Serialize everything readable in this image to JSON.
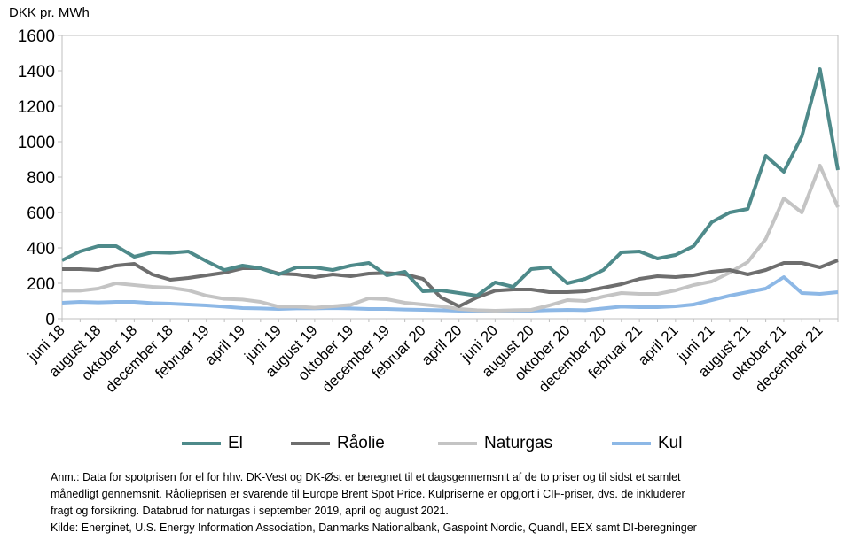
{
  "chart_data": {
    "type": "line",
    "ylabel": "DKK pr. MWh",
    "xlabel": "",
    "ylim": [
      0,
      1600
    ],
    "yticks": [
      "0",
      "200",
      "400",
      "600",
      "800",
      "1000",
      "1200",
      "1400",
      "1600"
    ],
    "grid": false,
    "legend": "bottom",
    "xticks": [
      "juni 18",
      "august 18",
      "oktober 18",
      "december 18",
      "februar 19",
      "april 19",
      "juni 19",
      "august 19",
      "oktober 19",
      "december 19",
      "februar 20",
      "april 20",
      "juni 20",
      "august 20",
      "oktober 20",
      "december 20",
      "februar 21",
      "april 21",
      "juni 21",
      "august 21",
      "oktober 21",
      "december 21"
    ],
    "x": [
      "jun 18",
      "jul 18",
      "aug 18",
      "sep 18",
      "okt 18",
      "nov 18",
      "dec 18",
      "jan 19",
      "feb 19",
      "mar 19",
      "apr 19",
      "maj 19",
      "jun 19",
      "jul 19",
      "aug 19",
      "sep 19",
      "okt 19",
      "nov 19",
      "dec 19",
      "jan 20",
      "feb 20",
      "mar 20",
      "apr 20",
      "maj 20",
      "jun 20",
      "jul 20",
      "aug 20",
      "sep 20",
      "okt 20",
      "nov 20",
      "dec 20",
      "jan 21",
      "feb 21",
      "mar 21",
      "apr 21",
      "maj 21",
      "jun 21",
      "jul 21",
      "aug 21",
      "sep 21",
      "okt 21",
      "nov 21",
      "dec 21",
      "jan 22"
    ],
    "series": [
      {
        "name": "El",
        "color": "#4e8a8a",
        "values": [
          330,
          380,
          410,
          410,
          350,
          375,
          372,
          380,
          325,
          275,
          300,
          285,
          250,
          290,
          290,
          275,
          300,
          315,
          245,
          265,
          155,
          160,
          145,
          130,
          205,
          180,
          280,
          290,
          200,
          225,
          275,
          375,
          380,
          340,
          360,
          410,
          545,
          600,
          620,
          920,
          830,
          1030,
          1410,
          840
        ]
      },
      {
        "name": "Råolie",
        "color": "#6e6e6e",
        "values": [
          280,
          280,
          275,
          300,
          310,
          250,
          220,
          230,
          245,
          260,
          285,
          285,
          255,
          250,
          235,
          250,
          240,
          255,
          258,
          250,
          225,
          120,
          70,
          120,
          158,
          165,
          165,
          150,
          150,
          155,
          175,
          195,
          225,
          240,
          235,
          245,
          265,
          275,
          250,
          275,
          315,
          315,
          290,
          330
        ]
      },
      {
        "name": "Naturgas",
        "color": "#c4c4c4",
        "values": [
          158,
          158,
          170,
          200,
          190,
          180,
          175,
          160,
          130,
          112,
          108,
          95,
          68,
          68,
          62,
          70,
          78,
          115,
          110,
          90,
          80,
          70,
          55,
          48,
          45,
          48,
          50,
          75,
          105,
          100,
          125,
          145,
          140,
          140,
          160,
          190,
          210,
          260,
          320,
          450,
          680,
          600,
          865,
          630
        ]
      },
      {
        "name": "Kul",
        "color": "#8db8e6",
        "values": [
          90,
          95,
          92,
          95,
          95,
          88,
          85,
          80,
          75,
          68,
          60,
          58,
          55,
          58,
          58,
          60,
          58,
          55,
          55,
          52,
          50,
          48,
          45,
          40,
          40,
          45,
          45,
          48,
          50,
          48,
          58,
          68,
          65,
          65,
          70,
          80,
          105,
          130,
          150,
          170,
          235,
          145,
          140,
          150
        ]
      }
    ]
  },
  "notes": {
    "line1": "Anm.: Data for spotprisen for el for hhv. DK-Vest og DK-Øst er beregnet til et dagsgennemsnit af de to priser og til sidst et samlet",
    "line2": "månedligt gennemsnit. Råolieprisen er svarende til Europe Brent Spot Price. Kulpriserne er opgjort i CIF-priser, dvs. de inkluderer",
    "line3": "fragt og forsikring. Databrud for naturgas i september 2019, april og august 2021.",
    "line4": "Kilde: Energinet, U.S. Energy Information Association, Danmarks Nationalbank, Gaspoint Nordic, Quandl, EEX samt DI-beregninger"
  }
}
